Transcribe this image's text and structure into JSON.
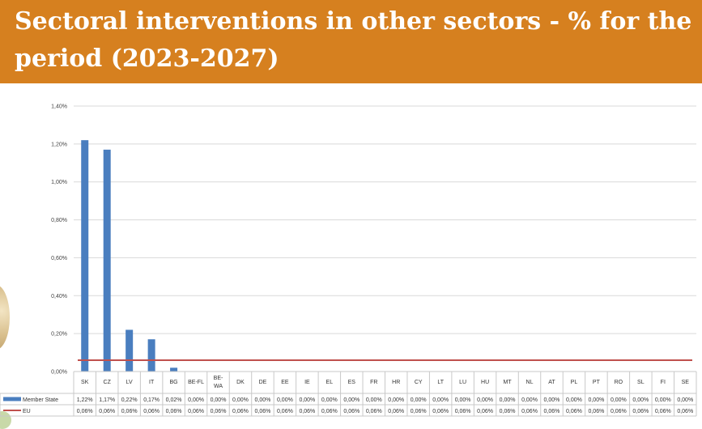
{
  "slide": {
    "title": "Sectoral interventions in other sectors - % for the period (2023-2027)"
  },
  "chart_data": {
    "type": "bar",
    "categories": [
      "SK",
      "CZ",
      "LV",
      "IT",
      "BG",
      "BE-FL",
      "BE-WA",
      "DK",
      "DE",
      "EE",
      "IE",
      "EL",
      "ES",
      "FR",
      "HR",
      "CY",
      "LT",
      "LU",
      "HU",
      "MT",
      "NL",
      "AT",
      "PL",
      "PT",
      "RO",
      "SL",
      "FI",
      "SE"
    ],
    "category_labels": [
      "SK",
      "CZ",
      "LV",
      "IT",
      "BG",
      "BE-FL",
      "BE- WA",
      "DK",
      "DE",
      "EE",
      "IE",
      "EL",
      "ES",
      "FR",
      "HR",
      "CY",
      "LT",
      "LU",
      "HU",
      "MT",
      "NL",
      "AT",
      "PL",
      "PT",
      "RO",
      "SL",
      "FI",
      "SE"
    ],
    "series": [
      {
        "name": "Member State",
        "chart_type": "bar",
        "color": "#4a7ebf",
        "values": [
          1.22,
          1.17,
          0.22,
          0.17,
          0.02,
          0,
          0,
          0,
          0,
          0,
          0,
          0,
          0,
          0,
          0,
          0,
          0,
          0,
          0,
          0,
          0,
          0,
          0,
          0,
          0,
          0,
          0,
          0
        ],
        "labels": [
          "1,22%",
          "1,17%",
          "0,22%",
          "0,17%",
          "0,02%",
          "0,00%",
          "0,00%",
          "0,00%",
          "0,00%",
          "0,00%",
          "0,00%",
          "0,00%",
          "0,00%",
          "0,00%",
          "0,00%",
          "0,00%",
          "0,00%",
          "0,00%",
          "0,00%",
          "0,00%",
          "0,00%",
          "0,00%",
          "0,00%",
          "0,00%",
          "0,00%",
          "0,00%",
          "0,00%",
          "0,00%"
        ]
      },
      {
        "name": "EU",
        "chart_type": "line",
        "color": "#c0504d",
        "values": [
          0.06,
          0.06,
          0.06,
          0.06,
          0.06,
          0.06,
          0.06,
          0.06,
          0.06,
          0.06,
          0.06,
          0.06,
          0.06,
          0.06,
          0.06,
          0.06,
          0.06,
          0.06,
          0.06,
          0.06,
          0.06,
          0.06,
          0.06,
          0.06,
          0.06,
          0.06,
          0.06,
          0.06
        ],
        "labels": [
          "0,06%",
          "0,06%",
          "0,06%",
          "0,06%",
          "0,06%",
          "0,06%",
          "0,06%",
          "0,06%",
          "0,06%",
          "0,06%",
          "0,06%",
          "0,06%",
          "0,06%",
          "0,06%",
          "0,06%",
          "0,06%",
          "0,06%",
          "0,06%",
          "0,06%",
          "0,06%",
          "0,06%",
          "0,06%",
          "0,06%",
          "0,06%",
          "0,06%",
          "0,06%",
          "0,06%",
          "0,06%"
        ]
      }
    ],
    "yticks": [
      0,
      0.2,
      0.4,
      0.6,
      0.8,
      1.0,
      1.2,
      1.4
    ],
    "ytick_labels": [
      "0,00%",
      "0,20%",
      "0,40%",
      "0,60%",
      "0,80%",
      "1,00%",
      "1,20%",
      "1,40%"
    ],
    "ylim": [
      0,
      1.4
    ],
    "grid": true,
    "legend": "data-table-below",
    "title": "",
    "xlabel": "",
    "ylabel": ""
  }
}
